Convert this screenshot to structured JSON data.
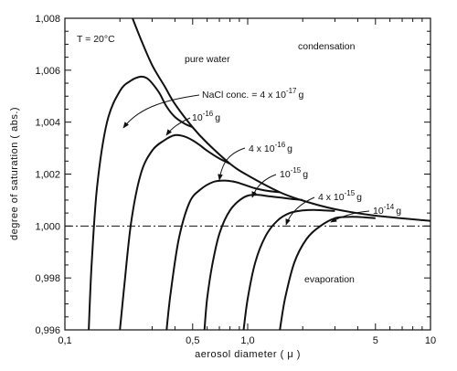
{
  "chart_data": {
    "type": "line",
    "title": "",
    "xlabel": "aerosol diameter ( μ )",
    "ylabel": "degree of saturation ( abs.)",
    "xscale": "log",
    "xlim": [
      0.1,
      10
    ],
    "ylim": [
      0.996,
      1.008
    ],
    "x_tick_labels": [
      "0,1",
      "0,5",
      "1,0",
      "5",
      "10"
    ],
    "x_tick_values": [
      0.1,
      0.5,
      1.0,
      5,
      10
    ],
    "y_tick_labels": [
      "0,996",
      "0,998",
      "1,000",
      "1,002",
      "1,004",
      "1,006",
      "1,008"
    ],
    "y_tick_values": [
      0.996,
      0.998,
      1.0,
      1.002,
      1.004,
      1.006,
      1.008
    ],
    "grid": false,
    "reference_line": {
      "y": 1.0,
      "style": "dash-dot"
    },
    "annotations": {
      "temperature": "T = 20°C",
      "condensation": "condensation",
      "evaporation": "evaporation"
    },
    "series": [
      {
        "name": "pure water",
        "x": [
          0.22,
          0.26,
          0.3,
          0.35,
          0.4,
          0.5,
          0.6,
          0.8,
          1.0,
          1.5,
          2.0,
          3.0,
          5.0,
          10.0
        ],
        "y": [
          1.0085,
          1.0072,
          1.0062,
          1.0054,
          1.0047,
          1.0038,
          1.0032,
          1.0024,
          1.00195,
          1.0013,
          1.00098,
          1.00065,
          1.0004,
          1.0002
        ]
      },
      {
        "name": "NaCl conc. = 4 x 10",
        "exp": "-17",
        "unit": "g",
        "x": [
          0.135,
          0.14,
          0.15,
          0.17,
          0.2,
          0.23,
          0.26,
          0.28,
          0.3,
          0.33,
          0.36,
          0.4,
          0.45,
          0.5
        ],
        "y": [
          0.996,
          0.9985,
          1.0015,
          1.004,
          1.0052,
          1.0056,
          1.00575,
          1.0057,
          1.0055,
          1.0051,
          1.0046,
          1.0042,
          1.00395,
          1.0038
        ]
      },
      {
        "name": "10",
        "exp": "-16",
        "unit": "g",
        "x": [
          0.2,
          0.21,
          0.23,
          0.26,
          0.3,
          0.35,
          0.4,
          0.45,
          0.5,
          0.55,
          0.6,
          0.7,
          0.8
        ],
        "y": [
          0.996,
          0.9975,
          1.0001,
          1.002,
          1.0029,
          1.0033,
          1.0035,
          1.00345,
          1.0033,
          1.0031,
          1.0029,
          1.0026,
          1.0024
        ]
      },
      {
        "name": "4 x 10",
        "exp": "-16",
        "unit": "g",
        "x": [
          0.36,
          0.38,
          0.42,
          0.48,
          0.55,
          0.65,
          0.75,
          0.85,
          0.95,
          1.1,
          1.3,
          1.5
        ],
        "y": [
          0.996,
          0.9975,
          0.9995,
          1.0009,
          1.0014,
          1.0017,
          1.00175,
          1.0017,
          1.0016,
          1.00145,
          1.00135,
          1.0013
        ]
      },
      {
        "name": "10",
        "exp": "-15",
        "unit": "g",
        "x": [
          0.58,
          0.6,
          0.64,
          0.7,
          0.8,
          0.95,
          1.1,
          1.3,
          1.5,
          1.7,
          2.0
        ],
        "y": [
          0.996,
          0.9972,
          0.9985,
          0.9997,
          1.0006,
          1.0011,
          1.0012,
          1.00115,
          1.0011,
          1.00105,
          1.001
        ]
      },
      {
        "name": "4 x 10",
        "exp": "-15",
        "unit": "g",
        "x": [
          0.95,
          1.0,
          1.1,
          1.25,
          1.45,
          1.7,
          2.0,
          2.3,
          2.6,
          3.0
        ],
        "y": [
          0.996,
          0.9972,
          0.9986,
          0.9996,
          1.0002,
          1.0005,
          1.0006,
          1.00062,
          1.0006,
          1.00058
        ]
      },
      {
        "name": "10",
        "exp": "-14",
        "unit": "g",
        "x": [
          1.5,
          1.6,
          1.8,
          2.1,
          2.5,
          3.0,
          3.5,
          4.0,
          5.0
        ],
        "y": [
          0.996,
          0.9972,
          0.9986,
          0.9995,
          1.0,
          1.0003,
          1.00035,
          1.00035,
          1.0003
        ]
      }
    ]
  }
}
